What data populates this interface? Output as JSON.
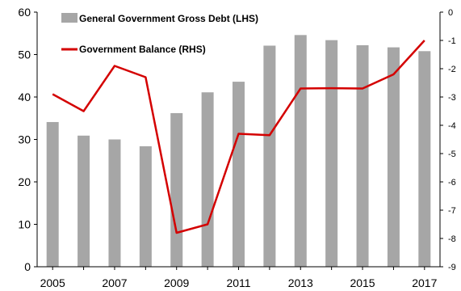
{
  "chart_data": {
    "type": "bar",
    "categories": [
      "2005",
      "2006",
      "2007",
      "2008",
      "2009",
      "2010",
      "2011",
      "2012",
      "2013",
      "2014",
      "2015",
      "2016",
      "2017"
    ],
    "series": [
      {
        "name": "General Government Gross Debt (LHS)",
        "type": "bar",
        "axis": "left",
        "color": "#a6a6a6",
        "values": [
          34.1,
          30.9,
          30.0,
          28.4,
          36.2,
          41.1,
          43.6,
          52.1,
          54.6,
          53.4,
          52.2,
          51.7,
          50.8
        ]
      },
      {
        "name": "Government Balance (RHS)",
        "type": "line",
        "axis": "right",
        "color": "#d40000",
        "values": [
          -2.9,
          -3.5,
          -1.9,
          -2.3,
          -7.8,
          -7.5,
          -4.3,
          -4.35,
          -2.7,
          -2.69,
          -2.7,
          -2.2,
          -1.0
        ]
      }
    ],
    "x_tick_labels": [
      "2005",
      "2007",
      "2009",
      "2011",
      "2013",
      "2015",
      "2017"
    ],
    "left_axis": {
      "ylim": [
        0,
        60
      ],
      "ticks": [
        "0",
        "10",
        "20",
        "30",
        "40",
        "50",
        "60"
      ]
    },
    "right_axis": {
      "ylim": [
        -9,
        0
      ],
      "ticks": [
        "0",
        "-1",
        "-2",
        "-3",
        "-4",
        "-5",
        "-6",
        "-7",
        "-8",
        "-9"
      ]
    },
    "legend_placement": "top-left",
    "grid": false
  }
}
